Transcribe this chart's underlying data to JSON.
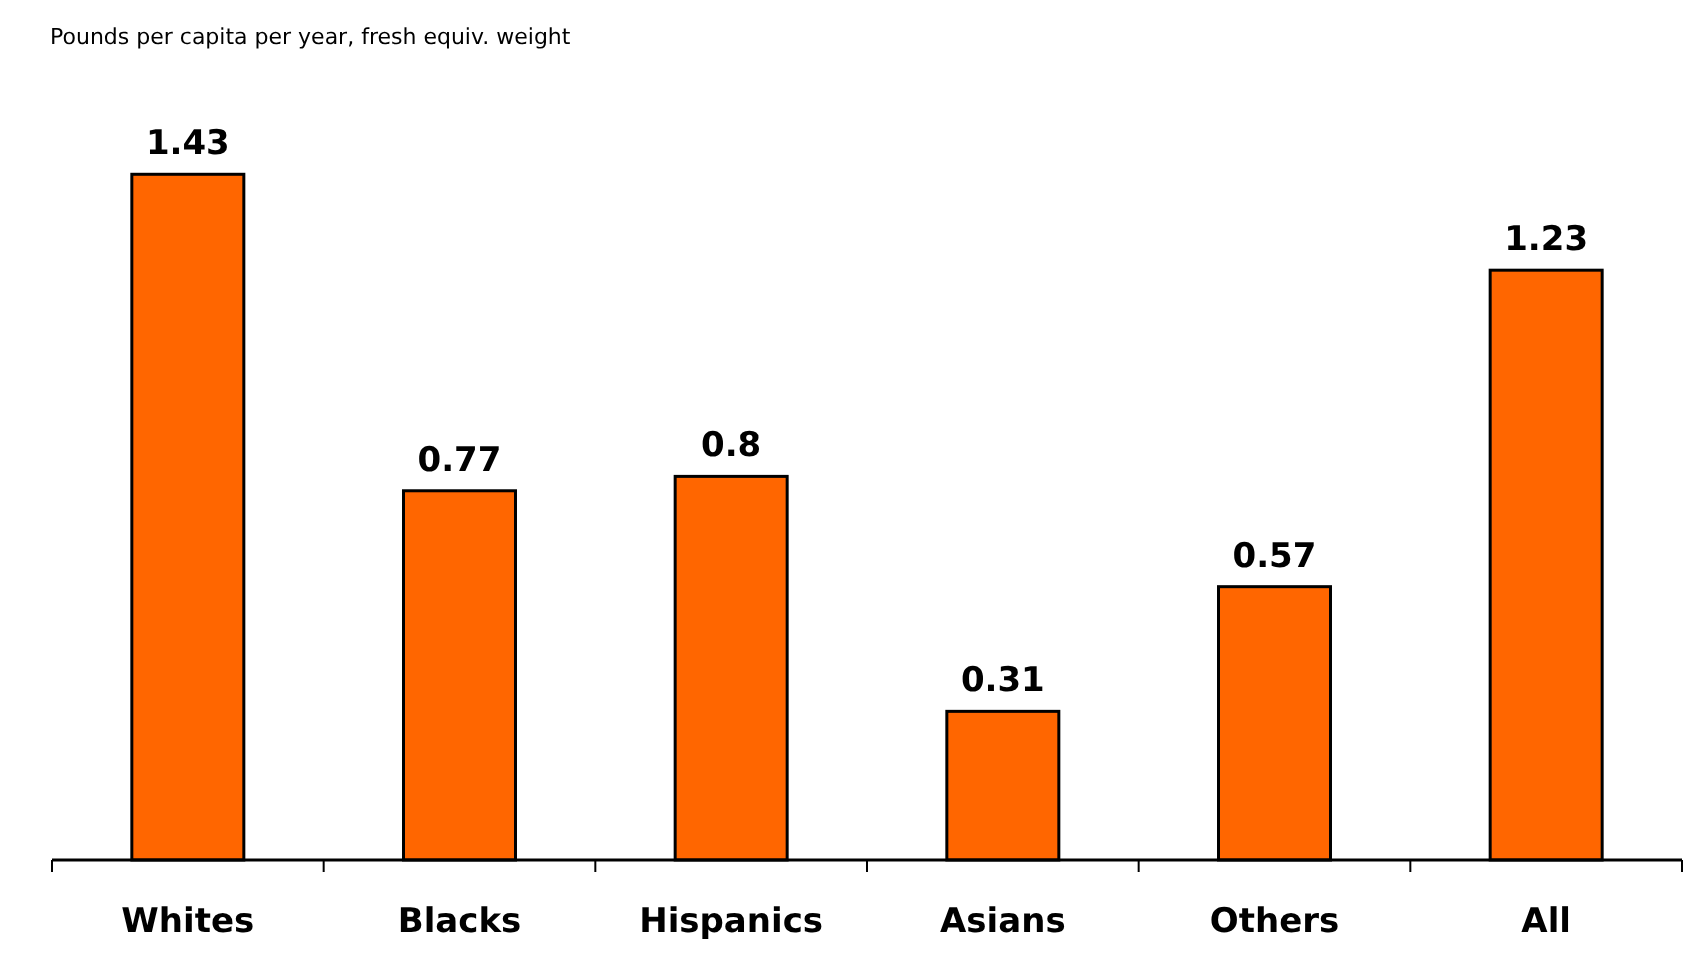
{
  "chart_data": {
    "type": "bar",
    "title": "Pounds per capita per year, fresh equiv. weight",
    "categories": [
      "Whites",
      "Blacks",
      "Hispanics",
      "Asians",
      "Others",
      "All"
    ],
    "values": [
      1.43,
      0.77,
      0.8,
      0.31,
      0.57,
      1.23
    ],
    "color": "#ff6600",
    "data_labels": true
  }
}
